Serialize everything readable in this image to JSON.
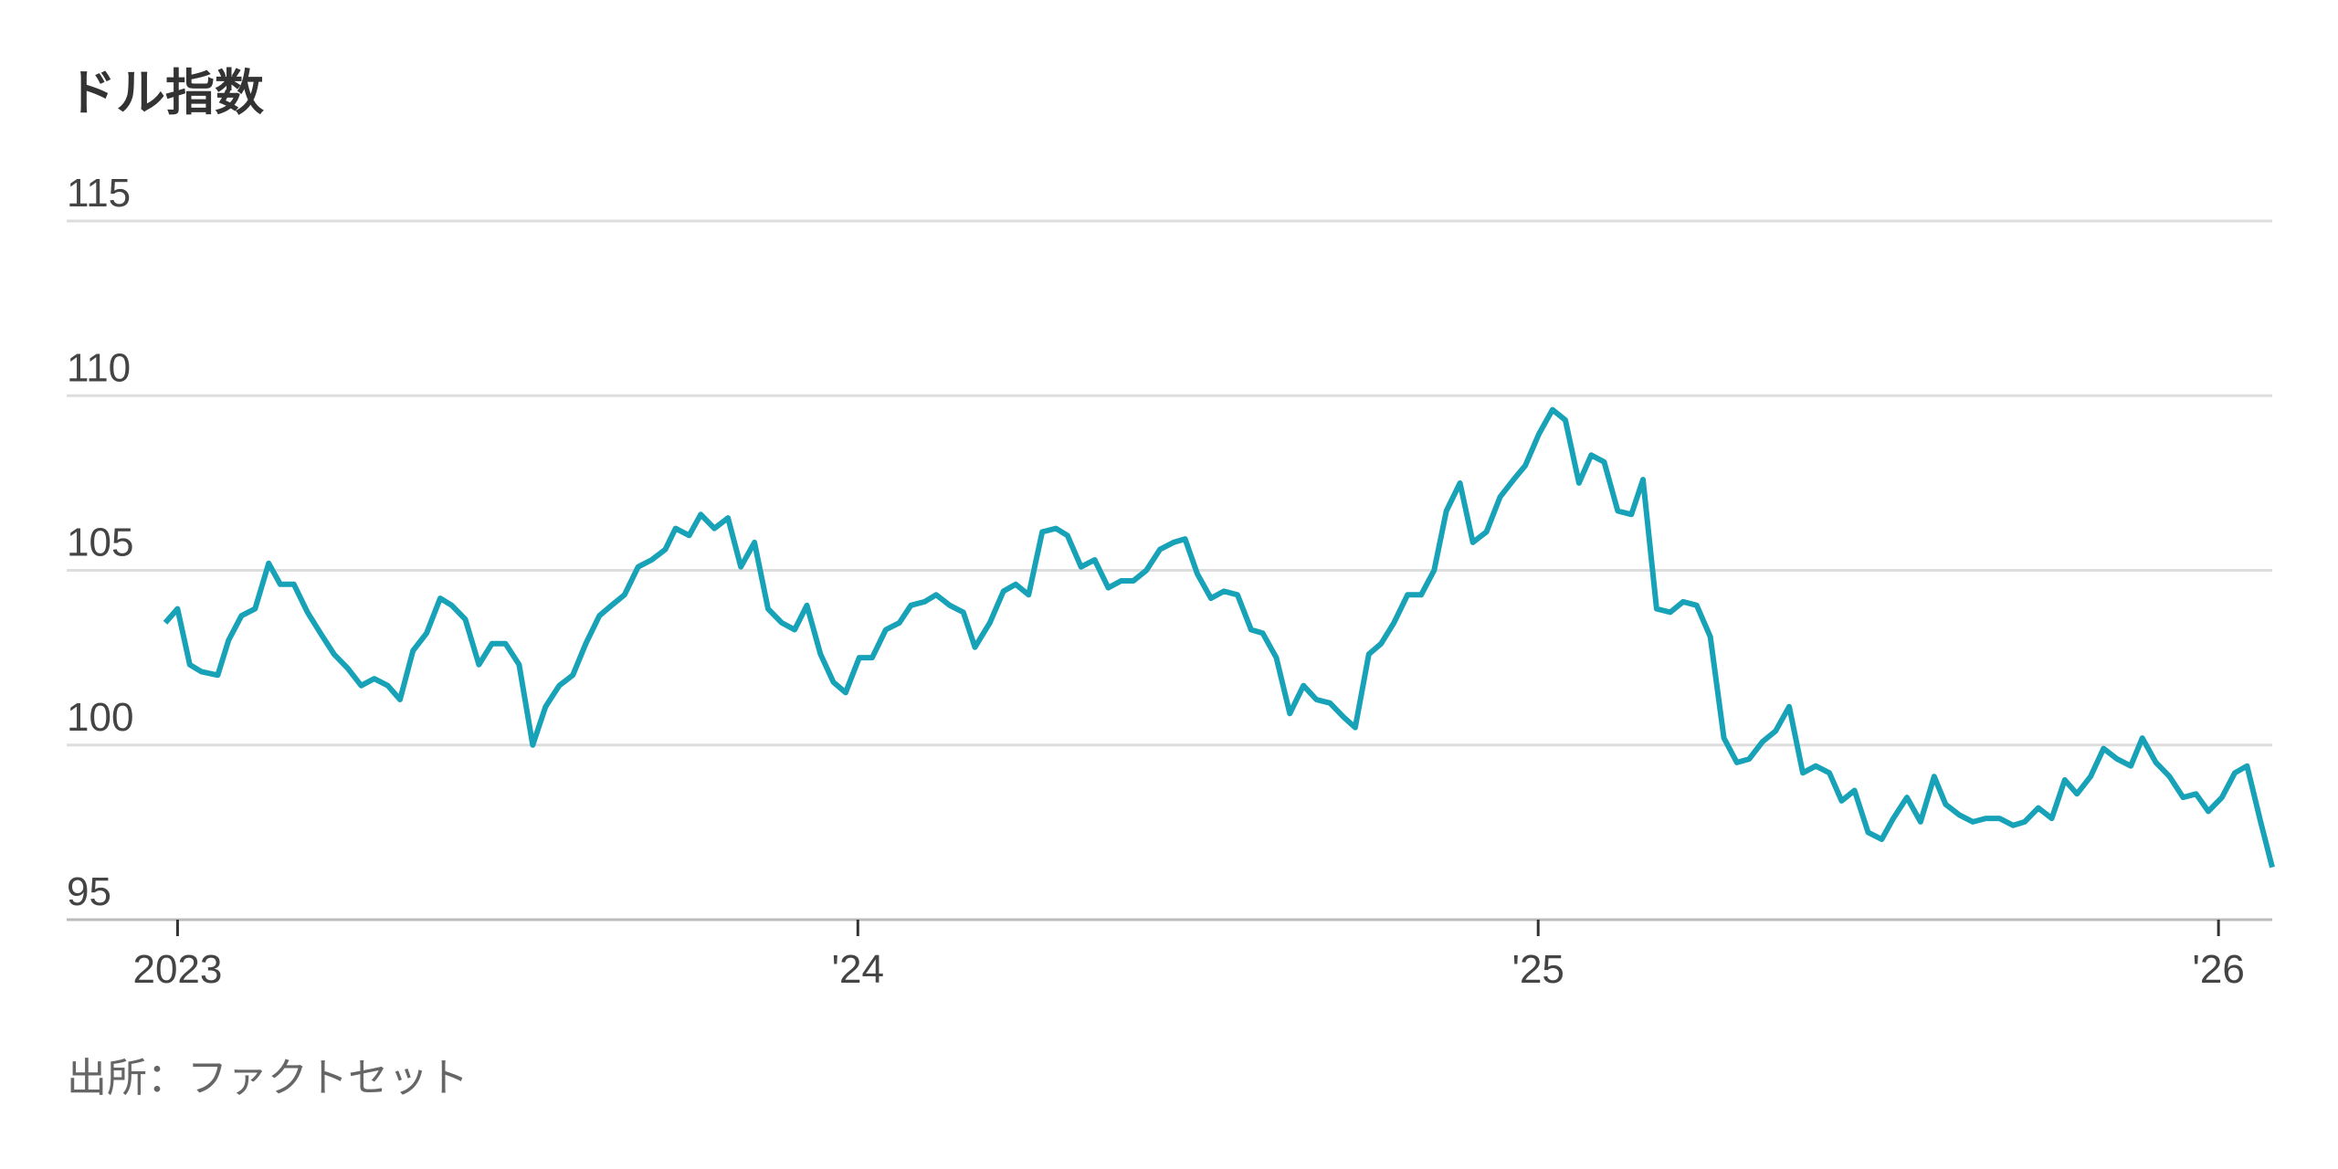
{
  "chart_data": {
    "type": "line",
    "title": "ドル指数",
    "source": "出所：ファクトセット",
    "color": "#17a2b8",
    "x": [
      2022.982,
      2023.0,
      2023.018,
      2023.035,
      2023.059,
      2023.075,
      2023.094,
      2023.114,
      2023.134,
      2023.151,
      2023.171,
      2023.191,
      2023.21,
      2023.23,
      2023.25,
      2023.27,
      2023.289,
      2023.309,
      2023.327,
      2023.346,
      2023.366,
      2023.386,
      2023.403,
      2023.423,
      2023.443,
      2023.462,
      2023.482,
      2023.502,
      2023.522,
      2023.541,
      2023.561,
      2023.581,
      2023.6,
      2023.62,
      2023.638,
      2023.657,
      2023.677,
      2023.697,
      2023.717,
      2023.732,
      2023.752,
      2023.769,
      2023.789,
      2023.809,
      2023.828,
      2023.848,
      2023.868,
      2023.888,
      2023.907,
      2023.925,
      2023.945,
      2023.964,
      2023.982,
      2024.002,
      2024.021,
      2024.041,
      2024.061,
      2024.078,
      2024.098,
      2024.115,
      2024.135,
      2024.155,
      2024.172,
      2024.194,
      2024.214,
      2024.232,
      2024.251,
      2024.271,
      2024.291,
      2024.308,
      2024.328,
      2024.348,
      2024.368,
      2024.387,
      2024.405,
      2024.424,
      2024.444,
      2024.464,
      2024.481,
      2024.499,
      2024.519,
      2024.538,
      2024.558,
      2024.578,
      2024.595,
      2024.615,
      2024.635,
      2024.655,
      2024.674,
      2024.694,
      2024.714,
      2024.731,
      2024.751,
      2024.769,
      2024.788,
      2024.808,
      2024.828,
      2024.847,
      2024.865,
      2024.885,
      2024.904,
      2024.924,
      2024.944,
      2024.964,
      2024.981,
      2025.001,
      2025.021,
      2025.04,
      2025.06,
      2025.078,
      2025.097,
      2025.117,
      2025.137,
      2025.154,
      2025.174,
      2025.194,
      2025.213,
      2025.233,
      2025.253,
      2025.273,
      2025.292,
      2025.31,
      2025.33,
      2025.349,
      2025.369,
      2025.389,
      2025.408,
      2025.428,
      2025.446,
      2025.465,
      2025.485,
      2025.505,
      2025.522,
      2025.542,
      2025.562,
      2025.582,
      2025.599,
      2025.619,
      2025.639,
      2025.658,
      2025.678,
      2025.698,
      2025.715,
      2025.735,
      2025.755,
      2025.774,
      2025.792,
      2025.812,
      2025.831,
      2025.851,
      2025.871,
      2025.888,
      2025.908,
      2025.928,
      2025.948,
      2025.967,
      2025.985,
      2026.005,
      2026.024,
      2026.042,
      2026.062,
      2026.079
    ],
    "values": [
      103.5,
      103.9,
      102.3,
      102.1,
      102.0,
      103.0,
      103.7,
      103.9,
      105.2,
      104.6,
      104.6,
      103.8,
      103.2,
      102.6,
      102.2,
      101.7,
      101.9,
      101.7,
      101.3,
      102.7,
      103.2,
      104.2,
      104.0,
      103.6,
      102.3,
      102.9,
      102.9,
      102.3,
      100.0,
      101.1,
      101.7,
      102.0,
      102.9,
      103.7,
      104.0,
      104.3,
      105.1,
      105.3,
      105.6,
      106.2,
      106.0,
      106.6,
      106.2,
      106.5,
      105.1,
      105.8,
      103.9,
      103.5,
      103.3,
      104.0,
      102.6,
      101.8,
      101.5,
      102.5,
      102.5,
      103.3,
      103.5,
      104.0,
      104.1,
      104.3,
      104.0,
      103.8,
      102.8,
      103.5,
      104.4,
      104.6,
      104.3,
      106.1,
      106.2,
      106.0,
      105.1,
      105.3,
      104.5,
      104.7,
      104.7,
      105.0,
      105.6,
      105.8,
      105.9,
      104.9,
      104.2,
      104.4,
      104.3,
      103.3,
      103.2,
      102.5,
      100.9,
      101.7,
      101.3,
      101.2,
      100.8,
      100.5,
      102.6,
      102.9,
      103.5,
      104.3,
      104.3,
      105.0,
      106.7,
      107.5,
      105.8,
      106.1,
      107.1,
      107.6,
      108.0,
      108.9,
      109.6,
      109.3,
      107.5,
      108.3,
      108.1,
      106.7,
      106.6,
      107.6,
      103.9,
      103.8,
      104.1,
      104.0,
      103.1,
      100.2,
      99.5,
      99.6,
      100.1,
      100.4,
      101.1,
      99.2,
      99.4,
      99.2,
      98.4,
      98.7,
      97.5,
      97.3,
      97.9,
      98.5,
      97.8,
      99.1,
      98.3,
      98.0,
      97.8,
      97.9,
      97.9,
      97.7,
      97.8,
      98.2,
      97.9,
      99.0,
      98.6,
      99.1,
      99.9,
      99.6,
      99.4,
      100.2,
      99.5,
      99.1,
      98.5,
      98.6,
      98.1,
      98.5,
      99.2,
      99.4,
      97.8,
      96.5
    ],
    "xlim": [
      2022.837,
      2026.079
    ],
    "xticks": [
      {
        "value": 2023,
        "label": "2023"
      },
      {
        "value": 2024,
        "label": "'24"
      },
      {
        "value": 2025,
        "label": "'25"
      },
      {
        "value": 2026,
        "label": "'26"
      }
    ],
    "ylim": [
      95,
      115
    ],
    "yticks": [
      95,
      100,
      105,
      110,
      115
    ],
    "grid": true
  }
}
